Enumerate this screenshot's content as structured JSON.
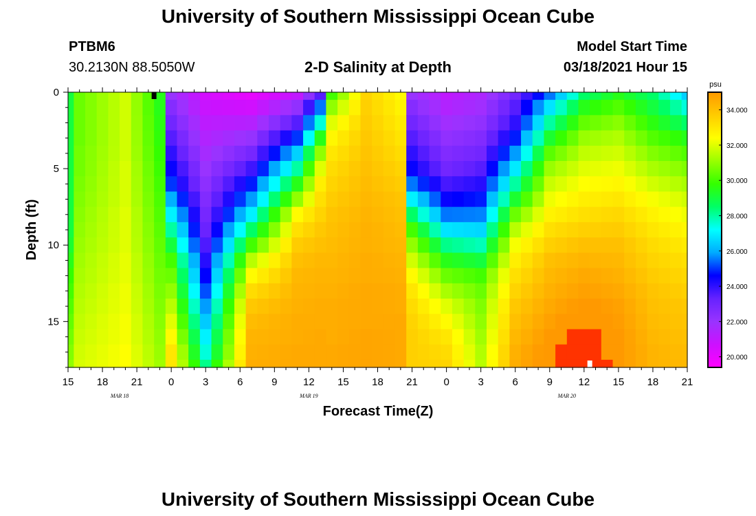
{
  "page": {
    "title_top": "University of Southern Mississippi Ocean Cube",
    "title_bottom": "University of Southern Mississippi Ocean Cube",
    "station_id": "PTBM6",
    "station_coords": "30.2130N 88.5050W",
    "plot_title": "2-D Salinity at Depth",
    "model_start_label": "Model Start Time",
    "model_start_value": "03/18/2021 Hour 15"
  },
  "chart_data": {
    "type": "heatmap",
    "title": "2-D Salinity at Depth",
    "xlabel": "Forecast Time(Z)",
    "ylabel": "Depth (ft)",
    "x_unit": "hours since 03/18/2021 15Z",
    "xlim": [
      0,
      54
    ],
    "ylim": [
      0,
      18
    ],
    "y_inverted": true,
    "x_ticks": [
      {
        "x": 0,
        "label": "15"
      },
      {
        "x": 3,
        "label": "18"
      },
      {
        "x": 6,
        "label": "21"
      },
      {
        "x": 9,
        "label": "0"
      },
      {
        "x": 12,
        "label": "3"
      },
      {
        "x": 15,
        "label": "6"
      },
      {
        "x": 18,
        "label": "9"
      },
      {
        "x": 21,
        "label": "12"
      },
      {
        "x": 24,
        "label": "15"
      },
      {
        "x": 27,
        "label": "18"
      },
      {
        "x": 30,
        "label": "21"
      },
      {
        "x": 33,
        "label": "0"
      },
      {
        "x": 36,
        "label": "3"
      },
      {
        "x": 39,
        "label": "6"
      },
      {
        "x": 42,
        "label": "9"
      },
      {
        "x": 45,
        "label": "12"
      },
      {
        "x": 48,
        "label": "15"
      },
      {
        "x": 51,
        "label": "18"
      },
      {
        "x": 54,
        "label": "21"
      }
    ],
    "date_labels": [
      {
        "x": 4.5,
        "label": "MAR 18"
      },
      {
        "x": 21,
        "label": "MAR 19"
      },
      {
        "x": 43.5,
        "label": "MAR 20"
      }
    ],
    "y_ticks": [
      {
        "y": 0,
        "label": "0"
      },
      {
        "y": 5,
        "label": "5"
      },
      {
        "y": 10,
        "label": "10"
      },
      {
        "y": 15,
        "label": "15"
      }
    ],
    "colorbar": {
      "unit": "psu",
      "vmin": 19.4,
      "vmax": 35.0,
      "ticks": [
        {
          "v": 20,
          "label": "20.000"
        },
        {
          "v": 22,
          "label": "22.000"
        },
        {
          "v": 24,
          "label": "24.000"
        },
        {
          "v": 26,
          "label": "26.000"
        },
        {
          "v": 28,
          "label": "28.000"
        },
        {
          "v": 30,
          "label": "30.000"
        },
        {
          "v": 32,
          "label": "32.000"
        },
        {
          "v": 34,
          "label": "34.000"
        }
      ],
      "colors": [
        "#ff00ff",
        "#cc11ff",
        "#9933ff",
        "#6622ff",
        "#0000ff",
        "#00aaff",
        "#00ffff",
        "#00ff66",
        "#33ff00",
        "#99ff00",
        "#ffff00",
        "#ffcc00",
        "#ff9900"
      ]
    },
    "x": [
      0,
      1,
      2,
      3,
      4,
      5,
      6,
      7,
      8,
      9,
      10,
      11,
      12,
      13,
      14,
      15,
      16,
      17,
      18,
      19,
      20,
      21,
      22,
      23,
      24,
      25,
      26,
      27,
      28,
      29,
      30,
      31,
      32,
      33,
      34,
      35,
      36,
      37,
      38,
      39,
      40,
      41,
      42,
      43,
      44,
      45,
      46,
      47,
      48,
      49,
      50,
      51,
      52,
      53,
      54
    ],
    "depths": [
      0,
      1,
      2,
      3,
      4,
      5,
      6,
      7,
      8,
      9,
      10,
      11,
      12,
      13,
      14,
      15,
      16,
      17,
      18
    ],
    "profiles": {
      "description": "salinity (psu) vs depth at key forecast hours; linear interpolation between",
      "series": [
        {
          "x": 0,
          "values": [
            29.0,
            29.0,
            29.0,
            29.0,
            29.0,
            29.0,
            29.0,
            29.0,
            29.0,
            29.0,
            29.2,
            29.5,
            29.8,
            30.0,
            30.2,
            30.4,
            30.6,
            30.8,
            31.0
          ]
        },
        {
          "x": 1,
          "values": [
            30.5,
            30.5,
            30.5,
            30.5,
            30.6,
            30.6,
            30.7,
            30.8,
            30.9,
            31.0,
            31.1,
            31.2,
            31.3,
            31.4,
            31.5,
            31.6,
            31.7,
            31.8,
            31.9
          ]
        },
        {
          "x": 5,
          "values": [
            31.8,
            31.8,
            31.8,
            31.8,
            31.8,
            31.9,
            31.9,
            31.9,
            32.0,
            32.0,
            32.0,
            32.1,
            32.1,
            32.2,
            32.2,
            32.3,
            32.3,
            32.4,
            32.4
          ]
        },
        {
          "x": 8,
          "values": [
            29.5,
            29.5,
            29.6,
            29.7,
            29.8,
            29.9,
            30.0,
            30.1,
            30.2,
            30.3,
            30.4,
            30.5,
            30.6,
            30.7,
            30.8,
            30.9,
            31.0,
            31.1,
            31.2
          ]
        },
        {
          "x": 9,
          "values": [
            22.0,
            22.5,
            23.0,
            23.5,
            24.0,
            24.5,
            25.0,
            26.0,
            27.0,
            28.0,
            29.0,
            30.0,
            30.5,
            31.0,
            31.5,
            32.0,
            32.5,
            33.0,
            33.0
          ]
        },
        {
          "x": 12,
          "values": [
            20.5,
            20.8,
            21.1,
            21.4,
            21.7,
            22.0,
            22.3,
            22.6,
            22.9,
            23.2,
            23.6,
            24.1,
            24.6,
            25.2,
            25.8,
            26.4,
            27.0,
            27.5,
            28.2
          ]
        },
        {
          "x": 16,
          "values": [
            20.0,
            20.6,
            21.3,
            22.1,
            22.9,
            23.8,
            24.8,
            25.8,
            27.0,
            28.5,
            30.0,
            31.5,
            32.5,
            33.3,
            33.8,
            34.1,
            34.3,
            34.4,
            34.5
          ]
        },
        {
          "x": 20,
          "values": [
            21.0,
            22.2,
            23.5,
            25.0,
            26.5,
            28.0,
            29.5,
            31.0,
            32.5,
            33.2,
            33.7,
            34.0,
            34.2,
            34.3,
            34.4,
            34.5,
            34.5,
            34.6,
            34.6
          ]
        },
        {
          "x": 22,
          "values": [
            23.5,
            25.5,
            27.5,
            29.5,
            31.0,
            32.0,
            32.8,
            33.2,
            33.5,
            33.8,
            34.0,
            34.2,
            34.3,
            34.4,
            34.5,
            34.5,
            34.6,
            34.6,
            34.6
          ]
        },
        {
          "x": 23,
          "values": [
            30.0,
            31.0,
            32.0,
            32.6,
            33.0,
            33.3,
            33.5,
            33.7,
            33.9,
            34.0,
            34.1,
            34.2,
            34.3,
            34.4,
            34.5,
            34.5,
            34.5,
            34.6,
            34.6
          ]
        },
        {
          "x": 26,
          "values": [
            33.5,
            33.6,
            33.7,
            33.8,
            33.9,
            34.0,
            34.1,
            34.2,
            34.3,
            34.4,
            34.4,
            34.5,
            34.5,
            34.6,
            34.6,
            34.6,
            34.7,
            34.7,
            34.7
          ]
        },
        {
          "x": 29,
          "values": [
            32.5,
            32.7,
            32.9,
            33.1,
            33.3,
            33.5,
            33.7,
            33.9,
            34.0,
            34.1,
            34.2,
            34.3,
            34.4,
            34.5,
            34.5,
            34.6,
            34.6,
            34.6,
            34.6
          ]
        },
        {
          "x": 30,
          "values": [
            22.0,
            22.5,
            23.0,
            23.5,
            24.0,
            24.5,
            25.5,
            27.0,
            28.5,
            30.0,
            31.0,
            31.8,
            32.5,
            33.0,
            33.3,
            33.5,
            33.6,
            33.6,
            33.6
          ]
        },
        {
          "x": 33,
          "values": [
            21.0,
            21.4,
            21.8,
            22.2,
            22.6,
            23.0,
            23.7,
            24.5,
            25.5,
            26.8,
            28.2,
            29.5,
            30.5,
            31.3,
            32.0,
            32.5,
            33.0,
            33.3,
            33.5
          ]
        },
        {
          "x": 36,
          "values": [
            21.5,
            21.8,
            22.2,
            22.6,
            23.0,
            23.5,
            24.1,
            24.8,
            25.6,
            26.6,
            27.8,
            29.0,
            30.0,
            30.5,
            30.8,
            31.0,
            31.2,
            31.4,
            31.5
          ]
        },
        {
          "x": 39,
          "values": [
            23.0,
            23.5,
            24.0,
            24.8,
            25.8,
            26.9,
            28.0,
            29.2,
            30.5,
            31.5,
            32.3,
            32.8,
            33.2,
            33.5,
            33.8,
            34.0,
            34.2,
            34.4,
            34.5
          ]
        },
        {
          "x": 42,
          "values": [
            25.5,
            26.8,
            28.0,
            29.2,
            30.3,
            31.1,
            31.7,
            32.2,
            32.7,
            33.2,
            33.6,
            34.0,
            34.2,
            34.4,
            34.6,
            34.8,
            35.0,
            35.2,
            35.3
          ]
        },
        {
          "x": 45,
          "values": [
            28.5,
            29.5,
            30.4,
            31.1,
            31.6,
            32.0,
            32.4,
            32.8,
            33.2,
            33.6,
            34.0,
            34.3,
            34.6,
            34.8,
            35.1,
            35.4,
            35.8,
            36.4,
            36.6
          ]
        },
        {
          "x": 48,
          "values": [
            29.5,
            30.2,
            30.9,
            31.4,
            31.8,
            32.2,
            32.6,
            33.0,
            33.4,
            33.7,
            34.0,
            34.2,
            34.4,
            34.6,
            34.8,
            34.9,
            35.0,
            35.0,
            35.0
          ]
        },
        {
          "x": 51,
          "values": [
            28.5,
            29.0,
            29.6,
            30.2,
            30.8,
            31.3,
            31.8,
            32.3,
            32.7,
            33.0,
            33.3,
            33.5,
            33.7,
            33.9,
            34.0,
            34.1,
            34.2,
            34.3,
            34.3
          ]
        },
        {
          "x": 54,
          "values": [
            26.5,
            27.5,
            28.5,
            29.5,
            30.2,
            30.8,
            31.3,
            31.8,
            32.2,
            32.6,
            32.9,
            33.2,
            33.4,
            33.6,
            33.8,
            33.9,
            34.0,
            34.1,
            34.2
          ]
        }
      ]
    },
    "markers": [
      {
        "x": 7.5,
        "y": 0,
        "color": "#000000"
      },
      {
        "x": 45.5,
        "y": 18,
        "color": "#ffffff"
      }
    ]
  }
}
